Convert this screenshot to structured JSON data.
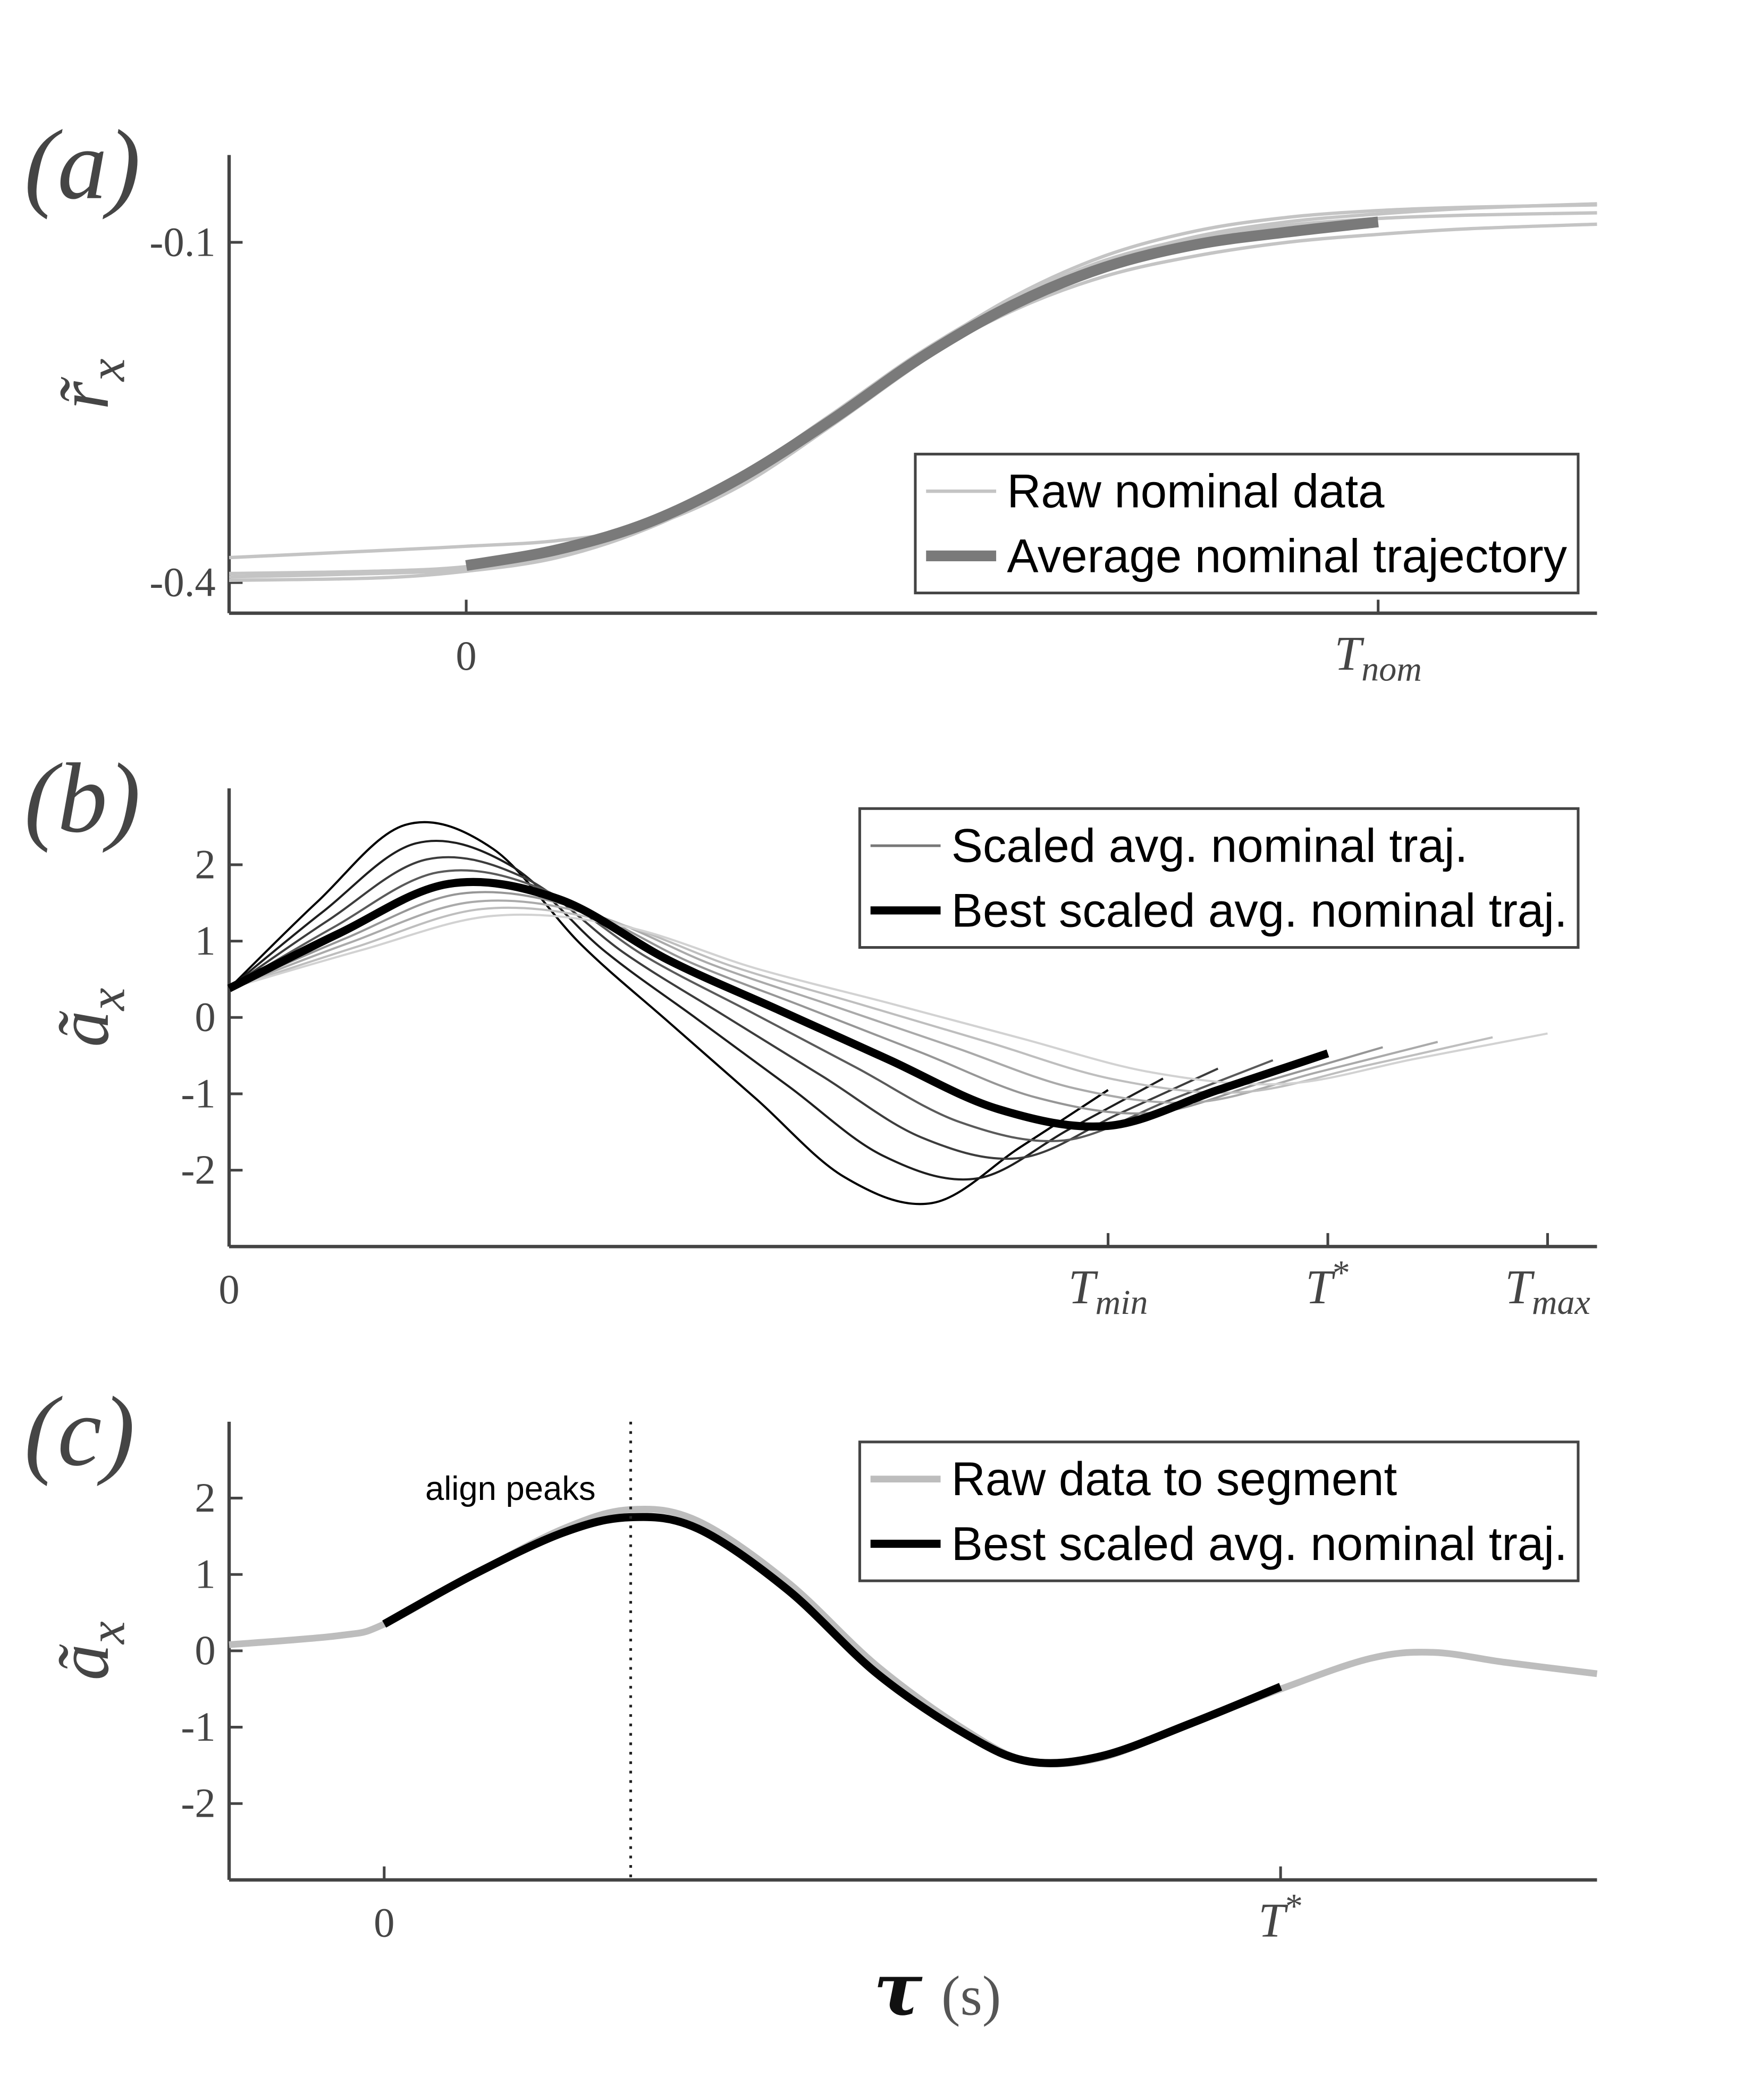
{
  "chart_data": [
    {
      "type": "line",
      "panel_label": "(a)",
      "ylabel": "r̃",
      "ylabel_subscript": "x",
      "xlim": [
        -0.26,
        1.24
      ],
      "ylim": [
        -0.427,
        -0.023
      ],
      "xticks": [
        0,
        {
          "value": 1,
          "label": "T",
          "subscript": "nom"
        }
      ],
      "yticks": [
        -0.1,
        -0.4
      ],
      "legend": "lower right",
      "x": [
        -0.26,
        -0.1,
        0,
        0.1,
        0.2,
        0.3,
        0.4,
        0.5,
        0.6,
        0.7,
        0.8,
        0.9,
        1.0,
        1.1,
        1.24
      ],
      "series": [
        {
          "name": "Raw nominal data",
          "color": "#c4c4c4",
          "linewidth": 2.5,
          "values": [
            -0.378,
            -0.372,
            -0.368,
            -0.363,
            -0.35,
            -0.315,
            -0.262,
            -0.205,
            -0.155,
            -0.118,
            -0.095,
            -0.082,
            -0.075,
            -0.07,
            -0.066
          ]
        },
        {
          "color": "#c4c4c4",
          "linewidth": 2.5,
          "values": [
            -0.395,
            -0.392,
            -0.388,
            -0.375,
            -0.35,
            -0.31,
            -0.257,
            -0.198,
            -0.148,
            -0.112,
            -0.09,
            -0.078,
            -0.072,
            -0.069,
            -0.067
          ]
        },
        {
          "color": "#c4c4c4",
          "linewidth": 2.5,
          "values": [
            -0.398,
            -0.396,
            -0.39,
            -0.378,
            -0.352,
            -0.312,
            -0.258,
            -0.203,
            -0.16,
            -0.13,
            -0.112,
            -0.1,
            -0.093,
            -0.088,
            -0.084
          ]
        },
        {
          "color": "#c4c4c4",
          "linewidth": 2.5,
          "values": [
            -0.392,
            -0.39,
            -0.386,
            -0.374,
            -0.348,
            -0.306,
            -0.252,
            -0.196,
            -0.15,
            -0.116,
            -0.096,
            -0.085,
            -0.079,
            -0.076,
            -0.074
          ]
        },
        {
          "name": "Average nominal trajectory",
          "color": "#7a7a7a",
          "linewidth": 8,
          "values": [
            null,
            null,
            -0.385,
            -0.371,
            -0.347,
            -0.308,
            -0.257,
            -0.201,
            -0.155,
            -0.122,
            -0.102,
            -0.091,
            -0.082,
            null,
            null
          ]
        }
      ]
    },
    {
      "type": "line",
      "panel_label": "(b)",
      "ylabel": "ã",
      "ylabel_subscript": "x",
      "xlim": [
        0,
        1.245
      ],
      "ylim": [
        -3,
        3
      ],
      "xticks": [
        0,
        {
          "value": 0.8,
          "label": "T",
          "subscript": "min"
        },
        {
          "value": 1,
          "label": "T",
          "superscript": "*"
        },
        {
          "value": 1.2,
          "label": "T",
          "subscript": "max"
        }
      ],
      "yticks": [
        -2,
        -1,
        0,
        1,
        2
      ],
      "legend": "upper right",
      "series": [
        {
          "color": "#000000",
          "linewidth": 1.6,
          "x": [
            0,
            0.08,
            0.16,
            0.24,
            0.32,
            0.4,
            0.48,
            0.56,
            0.64,
            0.72,
            0.8
          ],
          "values": [
            0.38,
            1.51,
            2.52,
            2.21,
            0.96,
            -0.06,
            -1.07,
            -2.09,
            -2.43,
            -1.7,
            -0.95
          ]
        },
        {
          "color": "#1e1e1e",
          "linewidth": 1.6,
          "x": [
            0,
            0.085,
            0.17,
            0.255,
            0.34,
            0.425,
            0.51,
            0.595,
            0.68,
            0.765,
            0.85
          ],
          "values": [
            0.38,
            1.38,
            2.28,
            2.0,
            0.89,
            -0.01,
            -0.91,
            -1.81,
            -2.11,
            -1.46,
            -0.8
          ]
        },
        {
          "color": "#3c3c3c",
          "linewidth": 1.6,
          "x": [
            0,
            0.09,
            0.18,
            0.27,
            0.36,
            0.45,
            0.54,
            0.63,
            0.72,
            0.81,
            0.9
          ],
          "values": [
            0.38,
            1.27,
            2.07,
            1.82,
            0.84,
            0.03,
            -0.77,
            -1.57,
            -1.84,
            -1.26,
            -0.67
          ]
        },
        {
          "color": "#5a5a5a",
          "linewidth": 1.6,
          "x": [
            0,
            0.095,
            0.19,
            0.285,
            0.38,
            0.475,
            0.57,
            0.665,
            0.76,
            0.855,
            0.95
          ],
          "values": [
            0.38,
            1.18,
            1.9,
            1.68,
            0.79,
            0.07,
            -0.65,
            -1.37,
            -1.61,
            -1.09,
            -0.56
          ]
        },
        {
          "name": "Scaled avg. nominal traj.",
          "color": "#787878",
          "linewidth": 1.6,
          "x": [
            0,
            0.1,
            0.2,
            0.3,
            0.4,
            0.5,
            0.6,
            0.7,
            0.8,
            0.9,
            1.0
          ],
          "values": [
            0.38,
            1.1,
            1.75,
            1.55,
            0.75,
            0.1,
            -0.55,
            -1.2,
            -1.42,
            -0.95,
            -0.47
          ]
        },
        {
          "color": "#969696",
          "linewidth": 1.6,
          "x": [
            0,
            0.105,
            0.21,
            0.315,
            0.42,
            0.525,
            0.63,
            0.735,
            0.84,
            0.945,
            1.05
          ],
          "values": [
            0.38,
            1.03,
            1.62,
            1.44,
            0.72,
            0.13,
            -0.46,
            -1.05,
            -1.25,
            -0.83,
            -0.39
          ]
        },
        {
          "color": "#aaaaaa",
          "linewidth": 1.6,
          "x": [
            0,
            0.11,
            0.22,
            0.33,
            0.44,
            0.55,
            0.66,
            0.77,
            0.88,
            0.99,
            1.1
          ],
          "values": [
            0.38,
            0.98,
            1.51,
            1.35,
            0.69,
            0.15,
            -0.39,
            -0.93,
            -1.11,
            -0.72,
            -0.32
          ]
        },
        {
          "color": "#bebebe",
          "linewidth": 1.6,
          "x": [
            0,
            0.115,
            0.23,
            0.345,
            0.46,
            0.575,
            0.69,
            0.805,
            0.92,
            1.035,
            1.15
          ],
          "values": [
            0.38,
            0.92,
            1.42,
            1.26,
            0.66,
            0.17,
            -0.32,
            -0.81,
            -0.98,
            -0.63,
            -0.26
          ]
        },
        {
          "color": "#d2d2d2",
          "linewidth": 1.6,
          "x": [
            0,
            0.12,
            0.24,
            0.36,
            0.48,
            0.6,
            0.72,
            0.84,
            0.96,
            1.08,
            1.2
          ],
          "values": [
            0.38,
            0.88,
            1.33,
            1.19,
            0.64,
            0.19,
            -0.27,
            -0.72,
            -0.87,
            -0.54,
            -0.21
          ]
        },
        {
          "name": "Best scaled avg. nominal traj.",
          "color": "#000000",
          "linewidth": 6,
          "x": [
            0,
            0.1,
            0.2,
            0.3,
            0.4,
            0.5,
            0.6,
            0.7,
            0.8,
            0.9,
            1.0
          ],
          "values": [
            0.38,
            1.1,
            1.75,
            1.55,
            0.75,
            0.1,
            -0.55,
            -1.2,
            -1.42,
            -0.95,
            -0.47
          ]
        }
      ]
    },
    {
      "type": "line",
      "panel_label": "(c)",
      "ylabel": "ã",
      "ylabel_subscript": "x",
      "xlabel": "τ",
      "xlabel_unit": "(s)",
      "xlim": [
        -0.173,
        1.353
      ],
      "ylim": [
        -3,
        3
      ],
      "xticks": [
        0,
        {
          "value": 1,
          "label": "T",
          "superscript": "*"
        }
      ],
      "yticks": [
        -2,
        -1,
        0,
        1,
        2
      ],
      "legend": "upper right",
      "annotation": {
        "text": "align peaks",
        "x": 0.275
      },
      "series": [
        {
          "name": "Raw data to segment",
          "color": "#bdbdbd",
          "linewidth": 5,
          "x": [
            -0.173,
            -0.05,
            0,
            0.1,
            0.2,
            0.275,
            0.35,
            0.45,
            0.55,
            0.65,
            0.72,
            0.8,
            0.9,
            1.0,
            1.1,
            1.17,
            1.25,
            1.353
          ],
          "values": [
            0.08,
            0.2,
            0.35,
            1.0,
            1.6,
            1.85,
            1.7,
            0.9,
            -0.2,
            -1.05,
            -1.45,
            -1.4,
            -0.95,
            -0.5,
            -0.1,
            -0.02,
            -0.15,
            -0.3
          ]
        },
        {
          "name": "Best scaled avg. nominal traj.",
          "color": "#000000",
          "linewidth": 6,
          "x": [
            0,
            0.1,
            0.2,
            0.275,
            0.35,
            0.45,
            0.55,
            0.65,
            0.72,
            0.8,
            0.9,
            1.0
          ],
          "values": [
            0.35,
            1.0,
            1.55,
            1.75,
            1.6,
            0.8,
            -0.3,
            -1.1,
            -1.45,
            -1.38,
            -0.95,
            -0.47
          ]
        }
      ]
    }
  ]
}
